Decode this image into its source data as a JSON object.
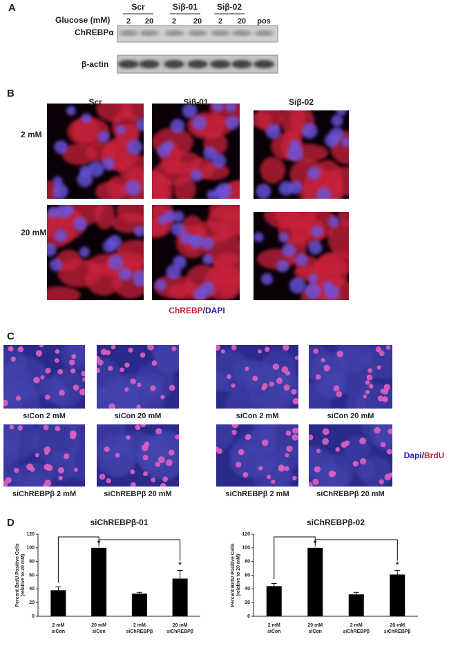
{
  "panel_a": {
    "label": "A",
    "glucose_label": "Glucose (mM)",
    "groups": [
      "Scr",
      "Siβ-01",
      "Siβ-02"
    ],
    "lanes": [
      "2",
      "20",
      "2",
      "20",
      "2",
      "20",
      "pos"
    ],
    "rows": [
      "ChREBPα",
      "β-actin"
    ]
  },
  "panel_b": {
    "label": "B",
    "columns": [
      "Scr",
      "Siβ-01",
      "Siβ-02"
    ],
    "rows": [
      "2 mM",
      "20 mM"
    ],
    "caption": [
      "ChREBP",
      "/",
      "DAPI"
    ]
  },
  "panel_c": {
    "label": "C",
    "captions": [
      "siCon 2 mM",
      "siCon 20 mM",
      "siCon 2 mM",
      "siCon 20 mM",
      "siChREBPβ 2 mM",
      "siChREBPβ 20 mM",
      "siChREBPβ 2 mM",
      "siChREBPβ 20 mM"
    ],
    "legend": [
      "Dapi",
      "/",
      "BrdU"
    ]
  },
  "panel_d": {
    "label": "D"
  },
  "chart_data": [
    {
      "type": "bar",
      "title": "siChREBPβ-01",
      "ylabel": [
        "Percent BrdU Positive Cells",
        "(relative to 20 mM)"
      ],
      "categories": [
        [
          "2 mM",
          "siCon"
        ],
        [
          "20 mM",
          "siCon"
        ],
        [
          "2 mM",
          "siChREBPβ"
        ],
        [
          "20 mM",
          "siChREBPβ"
        ]
      ],
      "values": [
        38,
        100,
        33,
        55
      ],
      "error": [
        5,
        null,
        2,
        12
      ],
      "color": "#000000",
      "ylim": [
        0,
        120
      ],
      "yticks": [
        0,
        20,
        40,
        60,
        80,
        100,
        120
      ],
      "annotations": [
        "*",
        "*"
      ]
    },
    {
      "type": "bar",
      "title": "siChREBPβ-02",
      "ylabel": [
        "Percent BrdU Positive Cells",
        "(relative to 20 mM)"
      ],
      "categories": [
        [
          "2 mM",
          "siCon"
        ],
        [
          "20 mM",
          "siCon"
        ],
        [
          "2 mM",
          "siChREBPβ"
        ],
        [
          "20 mM",
          "siChREBPβ"
        ]
      ],
      "values": [
        44,
        100,
        32,
        61
      ],
      "error": [
        4,
        null,
        3,
        6
      ],
      "color": "#000000",
      "ylim": [
        0,
        120
      ],
      "yticks": [
        0,
        20,
        40,
        60,
        80,
        100,
        120
      ],
      "annotations": [
        "*",
        "*"
      ]
    }
  ]
}
